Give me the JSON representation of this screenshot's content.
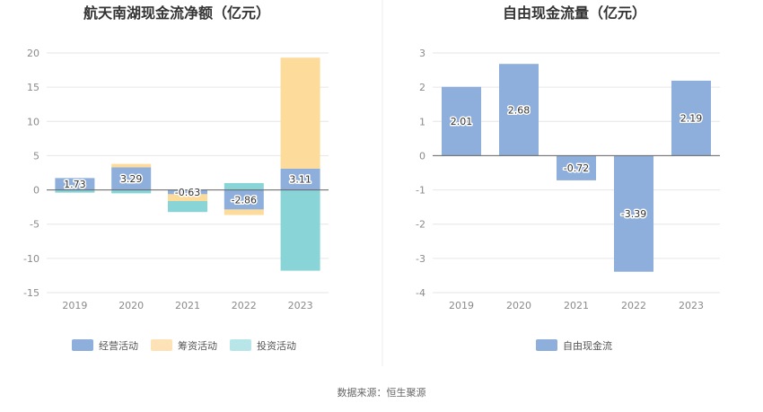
{
  "chart_data": [
    {
      "type": "bar",
      "stacked": true,
      "title": "航天南湖现金流净额（亿元）",
      "categories": [
        "2019",
        "2020",
        "2021",
        "2022",
        "2023"
      ],
      "ylim": [
        -15,
        20
      ],
      "yticks": [
        20,
        15,
        10,
        5,
        0,
        -5,
        -10,
        -15
      ],
      "grid": true,
      "legend_position": "bottom",
      "series": [
        {
          "name": "经营活动",
          "color": "#8eaedc",
          "values": [
            1.73,
            3.29,
            -0.63,
            -2.86,
            3.11
          ]
        },
        {
          "name": "筹资活动",
          "color": "#fddb9a",
          "values": [
            0.0,
            0.5,
            -1.0,
            -0.8,
            16.2
          ]
        },
        {
          "name": "投资活动",
          "color": "#89d4d6",
          "values": [
            -0.4,
            -0.5,
            -1.6,
            1.0,
            -11.8
          ]
        }
      ],
      "data_labels": [
        "1.73",
        "3.29",
        "-0.63",
        "-2.86",
        "3.11"
      ]
    },
    {
      "type": "bar",
      "title": "自由现金流量（亿元）",
      "categories": [
        "2019",
        "2020",
        "2021",
        "2022",
        "2023"
      ],
      "ylim": [
        -4,
        3
      ],
      "yticks": [
        3,
        2,
        1,
        0,
        -1,
        -2,
        -3,
        -4
      ],
      "grid": true,
      "legend_position": "bottom",
      "series": [
        {
          "name": "自由现金流",
          "color": "#8eaedc",
          "values": [
            2.01,
            2.68,
            -0.72,
            -3.39,
            2.19
          ]
        }
      ],
      "data_labels": [
        "2.01",
        "2.68",
        "-0.72",
        "-3.39",
        "2.19"
      ]
    }
  ],
  "legend_colors": {
    "经营活动": "#8eaedc",
    "筹资活动": "#fde2b8",
    "投资活动": "#b8e6e8",
    "自由现金流": "#8eaedc"
  },
  "source": "数据来源：恒生聚源"
}
